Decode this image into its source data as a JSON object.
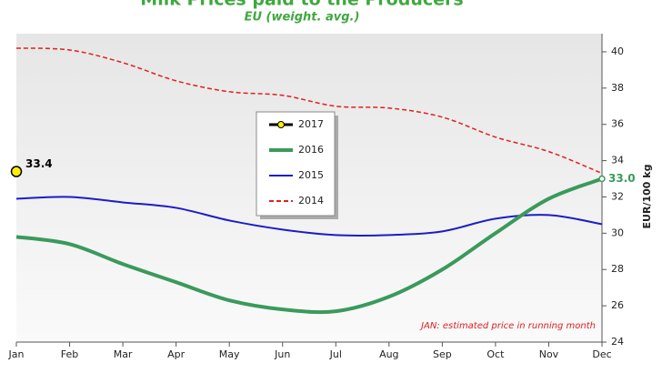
{
  "chart_data": {
    "type": "line",
    "title": "Milk Prices paid to the Producers",
    "subtitle": "EU (weight. avg.)",
    "y_axis_label": "EUR/100 kg",
    "annotation": "JAN:  estimated price in running month",
    "categories": [
      "Jan",
      "Feb",
      "Mar",
      "Apr",
      "May",
      "Jun",
      "Jul",
      "Aug",
      "Sep",
      "Oct",
      "Nov",
      "Dec"
    ],
    "ylim": [
      24,
      41
    ],
    "yticks": [
      24,
      26,
      28,
      30,
      32,
      34,
      36,
      38,
      40
    ],
    "y_axis_side": "right",
    "legend_position": "center-left",
    "series": [
      {
        "name": "2017",
        "color": "#ffee00",
        "values": [
          33.4,
          null,
          null,
          null,
          null,
          null,
          null,
          null,
          null,
          null,
          null,
          null
        ],
        "value_labels": [
          "33.4",
          null,
          null,
          null,
          null,
          null,
          null,
          null,
          null,
          null,
          null,
          null
        ]
      },
      {
        "name": "2016",
        "color": "#3a9a5b",
        "values": [
          29.8,
          29.4,
          28.3,
          27.3,
          26.3,
          25.8,
          25.7,
          26.5,
          28.0,
          30.0,
          31.9,
          33.0
        ],
        "value_labels": [
          null,
          null,
          null,
          null,
          null,
          null,
          null,
          null,
          null,
          null,
          null,
          "33.0"
        ]
      },
      {
        "name": "2015",
        "color": "#1c1cc8",
        "values": [
          31.9,
          32.0,
          31.7,
          31.4,
          30.7,
          30.2,
          29.9,
          29.9,
          30.1,
          30.8,
          31.0,
          30.5
        ]
      },
      {
        "name": "2014",
        "color": "#e02020",
        "dashed": true,
        "values": [
          40.2,
          40.1,
          39.4,
          38.4,
          37.8,
          37.6,
          37.0,
          36.9,
          36.4,
          35.3,
          34.5,
          33.3
        ]
      }
    ]
  }
}
